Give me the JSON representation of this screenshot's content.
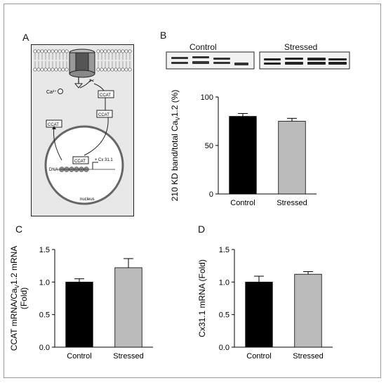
{
  "panels": {
    "A": "A",
    "B": "B",
    "C": "C",
    "D": "D"
  },
  "schematic": {
    "calcium": "Ca²⁺",
    "ccat": "CCAT",
    "dna": "DNA",
    "gene": "Cx 31.1",
    "nucleus": "nucleus",
    "plus": "+"
  },
  "blot": {
    "control_label": "Control",
    "stressed_label": "Stressed"
  },
  "colors": {
    "control": "#000000",
    "stressed": "#bbbbbb",
    "membrane": "#d9d9d9",
    "cell_bg": "#e8e8e8"
  },
  "chart_data": [
    {
      "id": "B",
      "type": "bar",
      "categories": [
        "Control",
        "Stressed"
      ],
      "values": [
        80,
        75
      ],
      "errors": [
        3,
        3
      ],
      "ylabel_main": "210 KD band/total Ca",
      "ylabel_sub": "V",
      "ylabel_tail": "1.2 (%)",
      "ylim": [
        0,
        100
      ],
      "yticks": [
        0,
        50,
        100
      ],
      "ytick_labels": [
        "0",
        "50",
        "100"
      ]
    },
    {
      "id": "C",
      "type": "bar",
      "categories": [
        "Control",
        "Stressed"
      ],
      "values": [
        1.0,
        1.22
      ],
      "errors": [
        0.05,
        0.14
      ],
      "ylabel_main": "CCAT mRNA/Ca",
      "ylabel_sub": "V",
      "ylabel_tail": "1.2 mRNA",
      "ylabel_line2": "(Fold)",
      "ylim": [
        0,
        1.5
      ],
      "yticks": [
        0,
        0.5,
        1.0,
        1.5
      ],
      "ytick_labels": [
        "0.0",
        "0.5",
        "1.0",
        "1.5"
      ]
    },
    {
      "id": "D",
      "type": "bar",
      "categories": [
        "Control",
        "Stressed"
      ],
      "values": [
        1.0,
        1.12
      ],
      "errors": [
        0.09,
        0.04
      ],
      "ylabel_main": "Cx31.1 mRNA (Fold)",
      "ylim": [
        0,
        1.5
      ],
      "yticks": [
        0,
        0.5,
        1.0,
        1.5
      ],
      "ytick_labels": [
        "0.0",
        "0.5",
        "1.0",
        "1.5"
      ]
    }
  ]
}
